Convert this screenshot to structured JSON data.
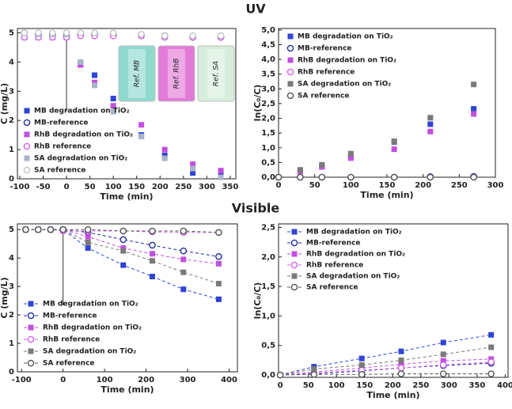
{
  "sections": [
    "UV",
    "Visible"
  ],
  "chart_data": [
    {
      "type": "scatter",
      "xlabel": "Time (min)",
      "ylabel": "C (mg/L)",
      "xlim": [
        -105,
        362
      ],
      "ylim": [
        0,
        5.15
      ],
      "xticks": [
        -100,
        -50,
        0,
        50,
        100,
        150,
        200,
        250,
        300,
        350
      ],
      "yticks": [
        0,
        1,
        2,
        3,
        4,
        5
      ],
      "legend": "lower left",
      "vertical_line": 0,
      "inset_labels": [
        "Ref. MB",
        "Ref. RhB",
        "Ref. SA"
      ],
      "x": [
        -90,
        -60,
        -30,
        0,
        30,
        60,
        100,
        160,
        210,
        270,
        330
      ],
      "series": [
        {
          "name": "MB degradation on TiO₂",
          "color": "#2f44d6",
          "marker": "square",
          "values": [
            5,
            4.9,
            4.9,
            4.95,
            3.95,
            3.55,
            2.75,
            1.5,
            0.8,
            0.2,
            0.22
          ]
        },
        {
          "name": "MB-reference",
          "color": "#1f2f9a",
          "marker": "circle",
          "values": [
            5,
            4.95,
            4.95,
            4.9,
            4.95,
            4.95,
            4.95,
            4.9,
            4.9,
            4.85,
            4.85
          ]
        },
        {
          "name": "RhB degradation on TiO₂",
          "color": "#c24fe0",
          "marker": "square",
          "values": [
            4.85,
            4.85,
            4.85,
            4.85,
            3.9,
            3.3,
            2.5,
            1.85,
            1.0,
            0.5,
            0.28
          ]
        },
        {
          "name": "RhB reference",
          "color": "#d064e8",
          "marker": "circle",
          "values": [
            4.85,
            4.85,
            4.85,
            4.85,
            4.9,
            4.9,
            4.9,
            4.9,
            4.85,
            4.85,
            4.85
          ]
        },
        {
          "name": "SA degradation on TiO₂",
          "color": "#aab4c8",
          "marker": "square",
          "values": [
            5,
            4.95,
            4.95,
            4.95,
            4.0,
            3.2,
            2.3,
            1.45,
            0.7,
            0.35,
            0.05
          ]
        },
        {
          "name": "SA reference",
          "color": "#c4c4c4",
          "marker": "circle",
          "values": [
            5,
            5,
            5,
            5,
            5,
            5,
            5,
            4.95,
            4.9,
            4.9,
            4.9
          ]
        }
      ]
    },
    {
      "type": "scatter",
      "xlabel": "Time (min)",
      "ylabel": "ln(C₀/C)",
      "xlim": [
        0,
        300
      ],
      "ylim": [
        0,
        5.05
      ],
      "xticks": [
        0,
        50,
        100,
        150,
        200,
        250,
        300
      ],
      "yticks": [
        {
          "value": 0,
          "label": "0,0"
        },
        {
          "value": 0.5,
          "label": "0,5"
        },
        {
          "value": 1,
          "label": "1,0"
        },
        {
          "value": 1.5,
          "label": "1,5"
        },
        {
          "value": 2,
          "label": "2,0"
        },
        {
          "value": 2.5,
          "label": "2,5"
        },
        {
          "value": 3,
          "label": "3,0"
        },
        {
          "value": 3.5,
          "label": "3,5"
        },
        {
          "value": 4,
          "label": "4,0"
        },
        {
          "value": 4.5,
          "label": "4,5"
        },
        {
          "value": 5,
          "label": "5,0"
        }
      ],
      "legend": "upper left",
      "x": [
        0,
        30,
        60,
        100,
        160,
        210,
        270
      ],
      "series": [
        {
          "name": "MB degradation on TiO₂",
          "color": "#2f44d6",
          "marker": "square",
          "values": [
            0,
            0.2,
            0.38,
            0.72,
            1.2,
            1.8,
            2.32
          ]
        },
        {
          "name": "MB-reference",
          "color": "#1f2f9a",
          "marker": "circle",
          "values": [
            0,
            0,
            0,
            0,
            0,
            0.02,
            0.03
          ]
        },
        {
          "name": "RhB degradation on TiO₂",
          "color": "#c24fe0",
          "marker": "square",
          "values": [
            0,
            0.2,
            0.35,
            0.65,
            0.95,
            1.55,
            2.15
          ]
        },
        {
          "name": "RhB reference",
          "color": "#d064e8",
          "marker": "circle",
          "values": [
            0,
            0,
            0,
            0,
            0,
            0,
            0.01
          ]
        },
        {
          "name": "SA degradation on TiO₂",
          "color": "#7a7a7a",
          "marker": "square",
          "values": [
            0,
            0.25,
            0.42,
            0.8,
            1.22,
            2.02,
            3.15
          ]
        },
        {
          "name": "SA reference",
          "color": "#555555",
          "marker": "circle",
          "values": [
            0,
            0,
            0,
            0,
            0,
            0,
            0
          ]
        }
      ]
    },
    {
      "type": "line",
      "line_style": "dashed",
      "xlabel": "Time (min)",
      "ylabel": "C (mg/L)",
      "xlim": [
        -110,
        420
      ],
      "ylim": [
        0,
        5.2
      ],
      "xticks": [
        -100,
        0,
        100,
        200,
        300,
        400
      ],
      "yticks": [
        0,
        1,
        2,
        3,
        4,
        5
      ],
      "legend": "lower left",
      "vertical_line": 0,
      "x": [
        -90,
        -60,
        -30,
        0,
        60,
        145,
        215,
        290,
        375
      ],
      "series": [
        {
          "name": "MB degradation on TiO₂",
          "color": "#2f44d6",
          "marker": "square",
          "values": [
            5,
            5,
            5,
            5,
            4.35,
            3.75,
            3.35,
            2.9,
            2.55
          ]
        },
        {
          "name": "MB-reference",
          "color": "#1f2f9a",
          "marker": "circle",
          "values": [
            5,
            5,
            5,
            5,
            4.9,
            4.65,
            4.45,
            4.25,
            4.05
          ]
        },
        {
          "name": "RhB degradation on TiO₂",
          "color": "#c24fe0",
          "marker": "square",
          "values": [
            5,
            5,
            5,
            5,
            4.75,
            4.35,
            4.15,
            3.95,
            3.8
          ]
        },
        {
          "name": "RhB reference",
          "color": "#d064e8",
          "marker": "circle",
          "values": [
            5,
            5,
            5,
            4.95,
            4.95,
            4.95,
            4.92,
            4.9,
            4.9
          ]
        },
        {
          "name": "SA degradation on TiO₂",
          "color": "#7a7a7a",
          "marker": "square",
          "values": [
            5,
            5,
            5,
            5,
            4.55,
            4.25,
            3.9,
            3.5,
            3.1
          ]
        },
        {
          "name": "SA reference",
          "color": "#555555",
          "marker": "circle",
          "values": [
            5,
            5,
            5,
            5,
            5,
            4.95,
            4.95,
            4.95,
            4.9
          ]
        }
      ]
    },
    {
      "type": "line",
      "line_style": "dashed",
      "xlabel": "Time (min)",
      "ylabel": "ln(C₀/C)",
      "xlim": [
        -3,
        405
      ],
      "ylim": [
        -0.04,
        2.56
      ],
      "xticks": [
        0,
        50,
        100,
        150,
        200,
        250,
        300,
        350,
        400
      ],
      "yticks": [
        {
          "value": 0,
          "label": "0,0"
        },
        {
          "value": 0.5,
          "label": "0,5"
        },
        {
          "value": 1,
          "label": "1,0"
        },
        {
          "value": 1.5,
          "label": "1,5"
        },
        {
          "value": 2,
          "label": "2,0"
        },
        {
          "value": 2.5,
          "label": "2,5"
        }
      ],
      "legend": "upper left",
      "x": [
        0,
        60,
        145,
        215,
        290,
        375
      ],
      "series": [
        {
          "name": "MB degradation on TiO₂",
          "color": "#2f44d6",
          "marker": "square",
          "values": [
            0,
            0.14,
            0.28,
            0.4,
            0.55,
            0.68
          ]
        },
        {
          "name": "MB-reference",
          "color": "#1f2f9a",
          "marker": "circle",
          "values": [
            0,
            0.02,
            0.07,
            0.12,
            0.16,
            0.2
          ]
        },
        {
          "name": "RhB degradation on TiO₂",
          "color": "#c24fe0",
          "marker": "square",
          "values": [
            0,
            0.05,
            0.12,
            0.18,
            0.24,
            0.27
          ]
        },
        {
          "name": "RhB reference",
          "color": "#d064e8",
          "marker": "circle",
          "values": [
            0,
            0.03,
            0.08,
            0.12,
            0.17,
            0.22
          ]
        },
        {
          "name": "SA degradation on TiO₂",
          "color": "#7a7a7a",
          "marker": "square",
          "values": [
            0,
            0.1,
            0.17,
            0.25,
            0.35,
            0.47
          ]
        },
        {
          "name": "SA reference",
          "color": "#555555",
          "marker": "circle",
          "values": [
            0,
            0.01,
            0.01,
            0.02,
            0.02,
            0.02
          ]
        }
      ]
    }
  ]
}
